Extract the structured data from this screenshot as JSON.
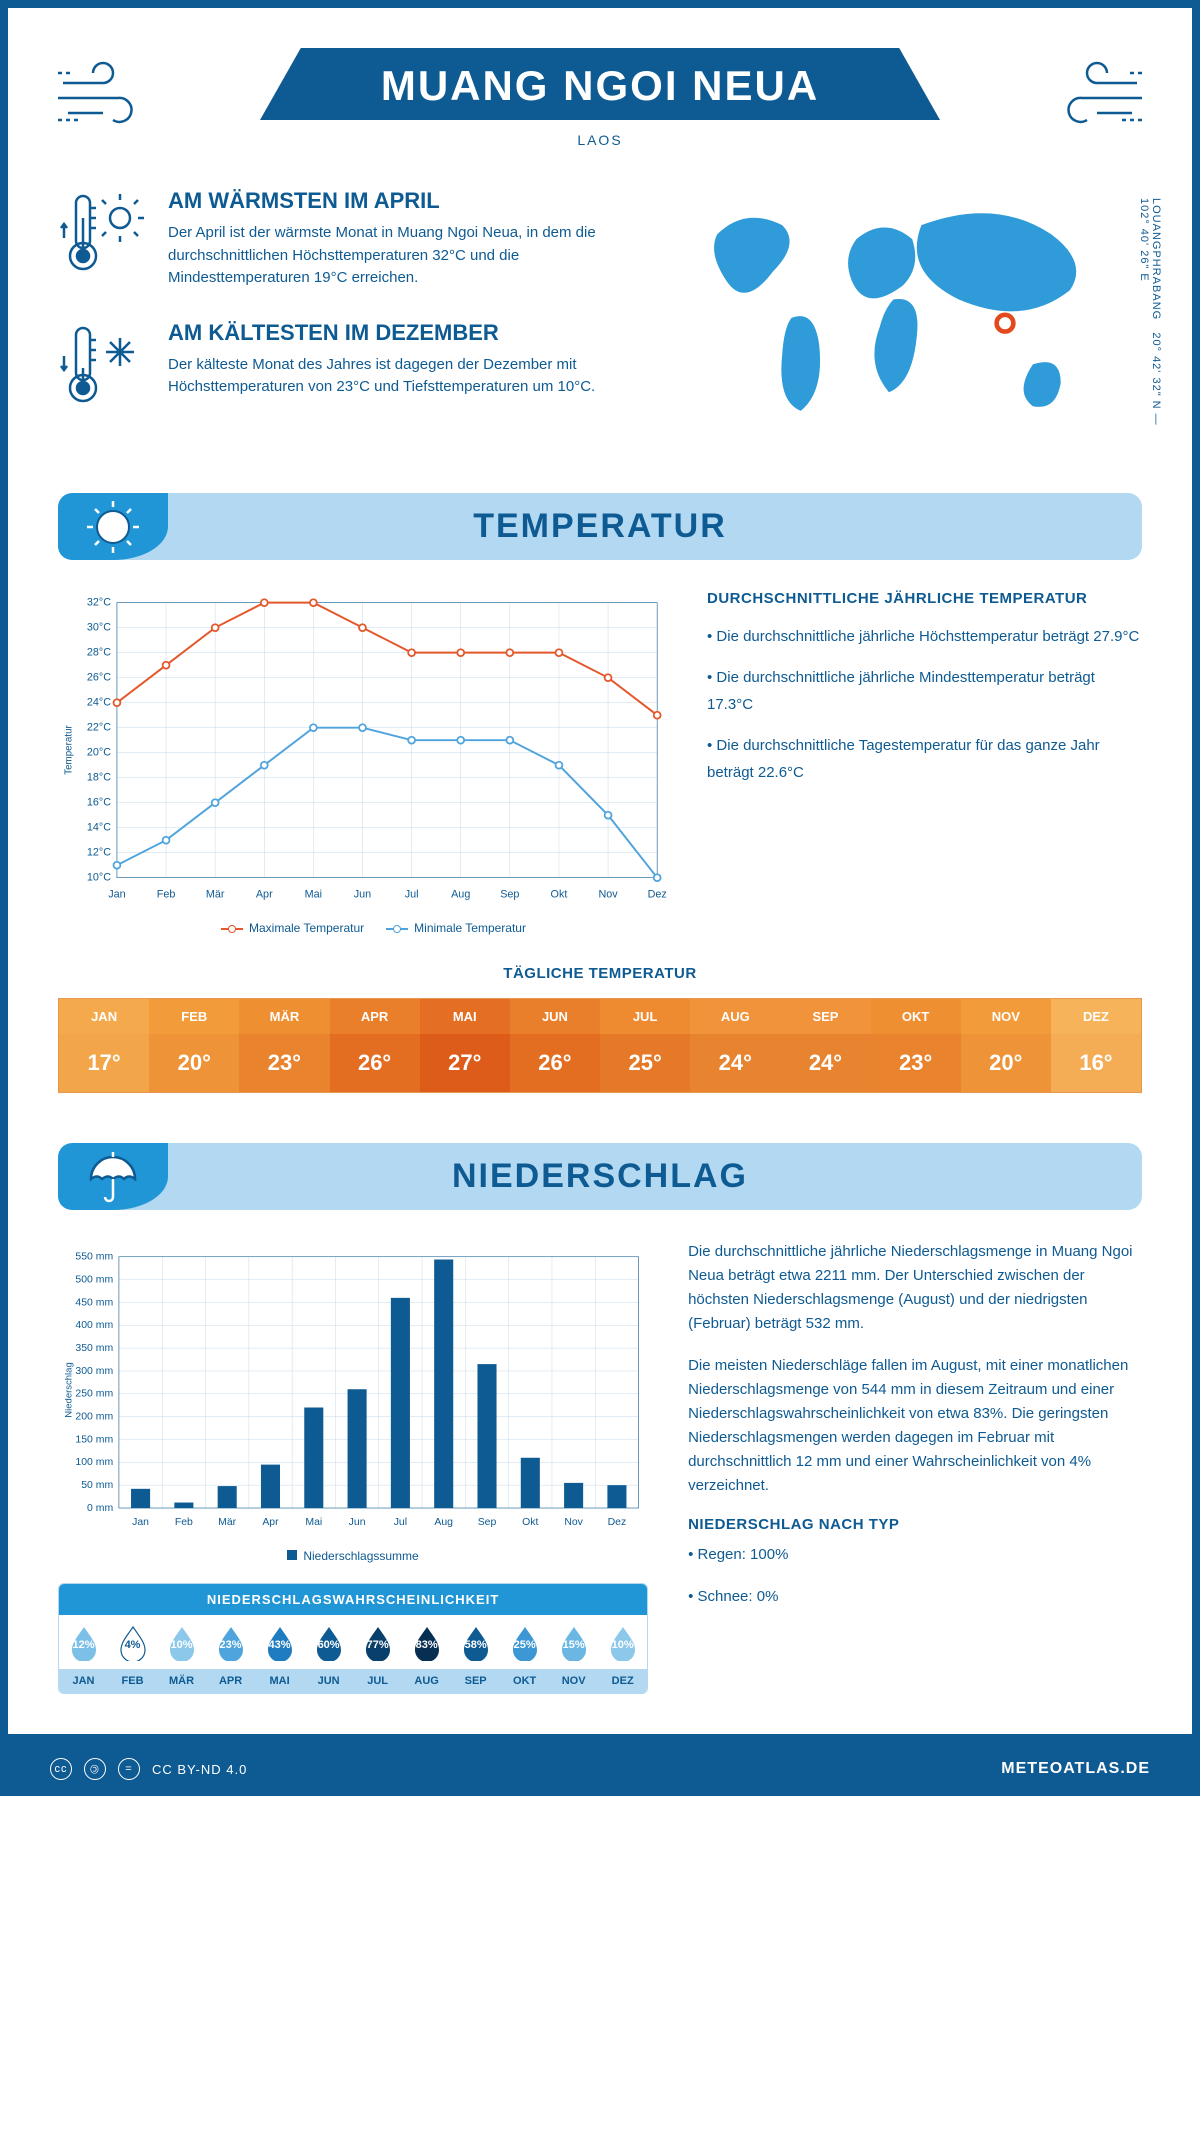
{
  "header": {
    "title": "MUANG NGOI NEUA",
    "subtitle": "LAOS",
    "coordinates": "20° 42' 32\" N — 102° 40' 26\" E",
    "region": "LOUANGPHRABANG"
  },
  "facts": {
    "warmest": {
      "heading": "AM WÄRMSTEN IM APRIL",
      "text": "Der April ist der wärmste Monat in Muang Ngoi Neua, in dem die durchschnittlichen Höchsttemperaturen 32°C und die Mindesttemperaturen 19°C erreichen."
    },
    "coldest": {
      "heading": "AM KÄLTESTEN IM DEZEMBER",
      "text": "Der kälteste Monat des Jahres ist dagegen der Dezember mit Höchsttemperaturen von 23°C und Tiefsttemperaturen um 10°C."
    }
  },
  "map": {
    "marker_x": 0.74,
    "marker_y": 0.52,
    "marker_color": "#e24a1e",
    "land_color": "#2f9bd8"
  },
  "temperature": {
    "section_title": "TEMPERATUR",
    "side_title": "DURCHSCHNITTLICHE JÄHRLICHE TEMPERATUR",
    "bullets": [
      "• Die durchschnittliche jährliche Höchsttemperatur beträgt 27.9°C",
      "• Die durchschnittliche jährliche Mindesttemperatur beträgt 17.3°C",
      "• Die durchschnittliche Tagestemperatur für das ganze Jahr beträgt 22.6°C"
    ],
    "chart": {
      "type": "line",
      "months": [
        "Jan",
        "Feb",
        "Mär",
        "Apr",
        "Mai",
        "Jun",
        "Jul",
        "Aug",
        "Sep",
        "Okt",
        "Nov",
        "Dez"
      ],
      "ylim": [
        10,
        32
      ],
      "ytick_step": 2,
      "y_suffix": "°C",
      "y_axis_title": "Temperatur",
      "grid_color": "#c5d9e8",
      "series": [
        {
          "name": "Maximale Temperatur",
          "color": "#e3572b",
          "values": [
            24,
            27,
            30,
            32,
            32,
            30,
            28,
            28,
            28,
            28,
            26,
            23
          ]
        },
        {
          "name": "Minimale Temperatur",
          "color": "#4fa4dd",
          "values": [
            11,
            13,
            16,
            19,
            22,
            22,
            21,
            21,
            21,
            19,
            15,
            10
          ]
        }
      ]
    },
    "daily": {
      "title": "TÄGLICHE TEMPERATUR",
      "months": [
        "JAN",
        "FEB",
        "MÄR",
        "APR",
        "MAI",
        "JUN",
        "JUL",
        "AUG",
        "SEP",
        "OKT",
        "NOV",
        "DEZ"
      ],
      "values": [
        "17°",
        "20°",
        "23°",
        "26°",
        "27°",
        "26°",
        "25°",
        "24°",
        "24°",
        "23°",
        "20°",
        "16°"
      ],
      "header_colors": [
        "#f5a94d",
        "#f29b3b",
        "#ee8f32",
        "#e97f2a",
        "#e46f24",
        "#e97f2a",
        "#ee8a30",
        "#f0933a",
        "#f0933a",
        "#ee8f32",
        "#f29b3b",
        "#f7b35a"
      ],
      "value_colors": [
        "#f2a549",
        "#ee9338",
        "#e9832d",
        "#e36e22",
        "#dd5c1a",
        "#e36e22",
        "#e67927",
        "#e88330",
        "#e88330",
        "#e9832d",
        "#ee9338",
        "#f4ad55"
      ]
    }
  },
  "precip": {
    "section_title": "NIEDERSCHLAG",
    "para1": "Die durchschnittliche jährliche Niederschlagsmenge in Muang Ngoi Neua beträgt etwa 2211 mm. Der Unterschied zwischen der höchsten Niederschlagsmenge (August) und der niedrigsten (Februar) beträgt 532 mm.",
    "para2": "Die meisten Niederschläge fallen im August, mit einer monatlichen Niederschlagsmenge von 544 mm in diesem Zeitraum und einer Niederschlagswahrscheinlichkeit von etwa 83%. Die geringsten Niederschlagsmengen werden dagegen im Februar mit durchschnittlich 12 mm und einer Wahrscheinlichkeit von 4% verzeichnet.",
    "by_type_title": "NIEDERSCHLAG NACH TYP",
    "by_type": [
      "• Regen: 100%",
      "• Schnee: 0%"
    ],
    "chart": {
      "type": "bar",
      "months": [
        "Jan",
        "Feb",
        "Mär",
        "Apr",
        "Mai",
        "Jun",
        "Jul",
        "Aug",
        "Sep",
        "Okt",
        "Nov",
        "Dez"
      ],
      "values": [
        42,
        12,
        48,
        95,
        220,
        260,
        460,
        544,
        315,
        110,
        55,
        50
      ],
      "ylim": [
        0,
        550
      ],
      "ytick_step": 50,
      "y_suffix": " mm",
      "y_axis_title": "Niederschlag",
      "bar_color": "#0e5a92",
      "grid_color": "#c5d9e8",
      "legend": "Niederschlagssumme"
    },
    "probability": {
      "title": "NIEDERSCHLAGSWAHRSCHEINLICHKEIT",
      "months": [
        "JAN",
        "FEB",
        "MÄR",
        "APR",
        "MAI",
        "JUN",
        "JUL",
        "AUG",
        "SEP",
        "OKT",
        "NOV",
        "DEZ"
      ],
      "values": [
        "12%",
        "4%",
        "10%",
        "23%",
        "43%",
        "60%",
        "77%",
        "83%",
        "58%",
        "25%",
        "15%",
        "10%"
      ],
      "colors": [
        "#7cc0e8",
        "#ffffff",
        "#8cc8ea",
        "#4fa4dd",
        "#1f7cc0",
        "#0e5a92",
        "#083f6b",
        "#062f52",
        "#0e5a92",
        "#3d97d4",
        "#6bb6e2",
        "#8cc8ea"
      ],
      "text_colors": [
        "#fff",
        "#0e5a92",
        "#fff",
        "#fff",
        "#fff",
        "#fff",
        "#fff",
        "#fff",
        "#fff",
        "#fff",
        "#fff",
        "#fff"
      ]
    }
  },
  "footer": {
    "license": "CC BY-ND 4.0",
    "brand": "METEOATLAS.DE"
  }
}
